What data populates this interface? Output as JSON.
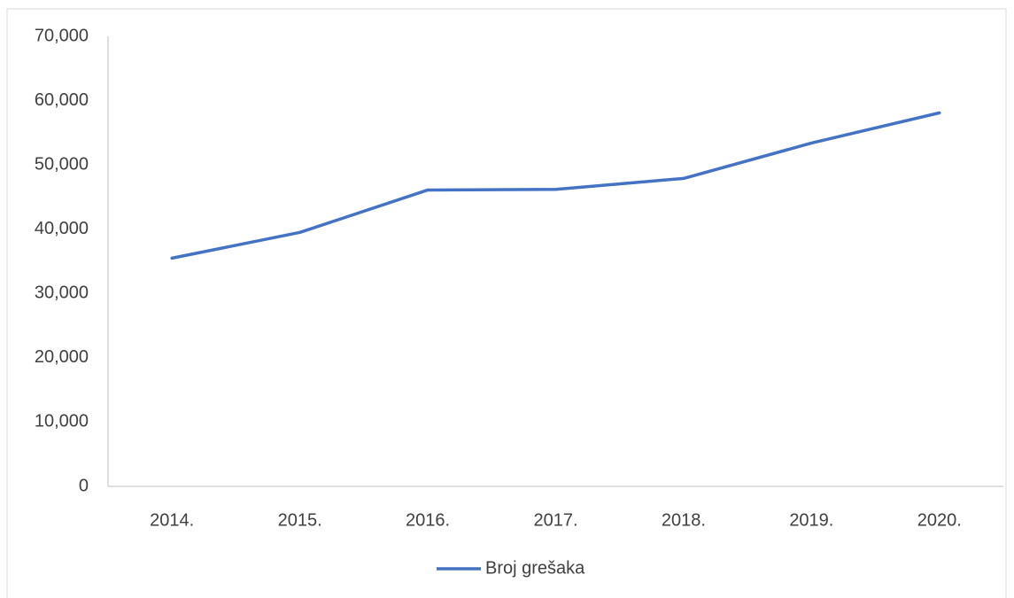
{
  "chart_data": {
    "type": "line",
    "categories": [
      "2014.",
      "2015.",
      "2016.",
      "2017.",
      "2018.",
      "2019.",
      "2020."
    ],
    "series": [
      {
        "name": "Broj grešaka",
        "color": "#4472c4",
        "values": [
          35500,
          39500,
          46100,
          46200,
          47900,
          53400,
          58100
        ]
      }
    ],
    "ylim": [
      0,
      70000
    ],
    "yticks": [
      0,
      {
        "value": 10000,
        "label": "10,000"
      },
      {
        "value": 20000,
        "label": "20,000"
      },
      {
        "value": 30000,
        "label": "30,000"
      },
      {
        "value": 40000,
        "label": "40,000"
      },
      {
        "value": 50000,
        "label": "50,000"
      },
      {
        "value": 60000,
        "label": "60,000"
      },
      {
        "value": 70000,
        "label": "70,000"
      }
    ],
    "grid": false,
    "legend": "bottom"
  }
}
